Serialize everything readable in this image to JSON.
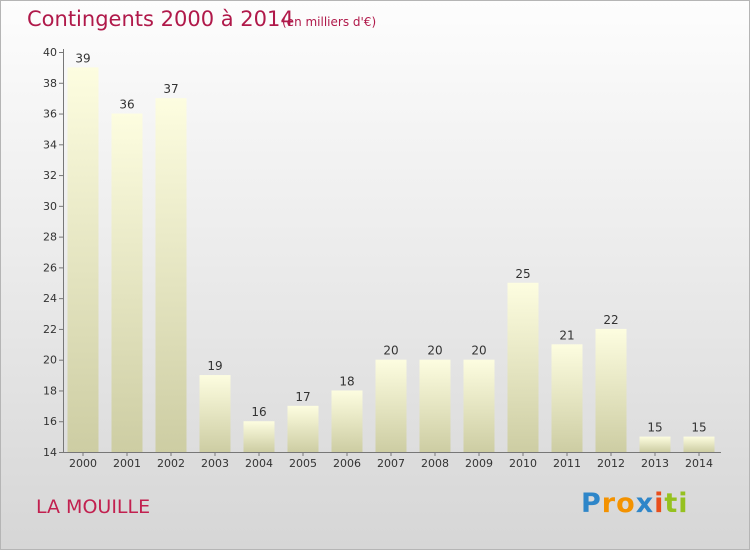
{
  "header": {
    "title": "Contingents 2000 à 2014",
    "subtitle": "(en milliers d'€)"
  },
  "footer": {
    "commune": "LA MOUILLE",
    "logo_letters": [
      "P",
      "r",
      "o",
      "x",
      "i",
      "t",
      "i"
    ],
    "logo_colors": [
      "#2e86c9",
      "#f39200",
      "#f39200",
      "#2e86c9",
      "#e94e1b",
      "#95c11f",
      "#95c11f"
    ]
  },
  "chart_data": {
    "type": "bar",
    "title": "Contingents 2000 à 2014",
    "subtitle": "(en milliers d'€)",
    "xlabel": "",
    "ylabel": "",
    "categories": [
      "2000",
      "2001",
      "2002",
      "2003",
      "2004",
      "2005",
      "2006",
      "2007",
      "2008",
      "2009",
      "2010",
      "2011",
      "2012",
      "2013",
      "2014"
    ],
    "values": [
      39,
      36,
      37,
      19,
      16,
      17,
      18,
      20,
      20,
      20,
      25,
      21,
      22,
      15,
      15
    ],
    "ylim": [
      14,
      40
    ],
    "yticks": [
      "14",
      "16",
      "18",
      "20",
      "22",
      "24",
      "26",
      "28",
      "30",
      "32",
      "34",
      "36",
      "38",
      "40"
    ],
    "grid": false,
    "legend": "none",
    "colors": {
      "bar_top": "#fdfde0",
      "bar_bottom": "#cdcda3",
      "axis": "#777777",
      "text": "#333333"
    }
  }
}
